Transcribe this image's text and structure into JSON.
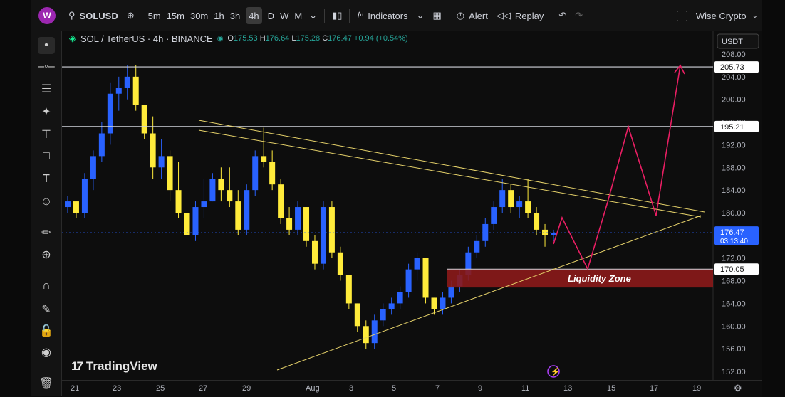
{
  "toolbar": {
    "logo": "W",
    "symbol": "SOLUSD",
    "intervals": [
      "5m",
      "15m",
      "30m",
      "1h",
      "3h",
      "4h",
      "D",
      "W",
      "M"
    ],
    "active_interval": "4h",
    "indicators_label": "Indicators",
    "alert_label": "Alert",
    "replay_label": "Replay",
    "account_label": "Wise Crypto"
  },
  "legend": {
    "title": "SOL / TetherUS · 4h · BINANCE",
    "o_label": "O",
    "o": "175.53",
    "h_label": "H",
    "h": "176.64",
    "l_label": "L",
    "l": "175.28",
    "c_label": "C",
    "c": "176.47",
    "change": "+0.94 (+0.54%)"
  },
  "currency": "USDT",
  "brand": "TradingView",
  "colors": {
    "up": "#2962ff",
    "down": "#ffeb3b",
    "trendline": "#e6d26a",
    "projection": "#e91e63",
    "zone": "#8b1a1a",
    "hline": "#d1d4dc",
    "price_tag": "#2962ff"
  },
  "chart_data": {
    "type": "candlestick",
    "ylim": [
      150,
      210
    ],
    "y_ticks": [
      "152.00",
      "156.00",
      "160.00",
      "164.00",
      "168.00",
      "172.00",
      "176.00",
      "180.00",
      "184.00",
      "188.00",
      "192.00",
      "196.00",
      "200.00",
      "204.00",
      "208.00"
    ],
    "x_ticks": [
      "21",
      "23",
      "25",
      "27",
      "29",
      "Aug",
      "3",
      "5",
      "7",
      "9",
      "11",
      "13",
      "15",
      "17",
      "19"
    ],
    "candles": [
      [
        181,
        183,
        180,
        182
      ],
      [
        182,
        182,
        179,
        180
      ],
      [
        180,
        187,
        179,
        186
      ],
      [
        186,
        191,
        184,
        190
      ],
      [
        190,
        196,
        189,
        194
      ],
      [
        194,
        203,
        192,
        201
      ],
      [
        201,
        204,
        198,
        202
      ],
      [
        202,
        206,
        200,
        204
      ],
      [
        204,
        206,
        198,
        199
      ],
      [
        199,
        199,
        193,
        194
      ],
      [
        194,
        197,
        186,
        188
      ],
      [
        188,
        193,
        186,
        190
      ],
      [
        190,
        191,
        182,
        184
      ],
      [
        184,
        189,
        179,
        180
      ],
      [
        180,
        181,
        174,
        176
      ],
      [
        176,
        182,
        175,
        181
      ],
      [
        181,
        186,
        179,
        182
      ],
      [
        182,
        187,
        182,
        186
      ],
      [
        186,
        188,
        182,
        184
      ],
      [
        184,
        188,
        181,
        182
      ],
      [
        182,
        184,
        176,
        177
      ],
      [
        177,
        185,
        176,
        184
      ],
      [
        184,
        191,
        183,
        190
      ],
      [
        190,
        195,
        188,
        189
      ],
      [
        189,
        191,
        184,
        185
      ],
      [
        185,
        186,
        178,
        179
      ],
      [
        179,
        181,
        176,
        177
      ],
      [
        177,
        182,
        176,
        181
      ],
      [
        181,
        181,
        174,
        175
      ],
      [
        175,
        176,
        170,
        171
      ],
      [
        171,
        182,
        170,
        181
      ],
      [
        181,
        182,
        172,
        173
      ],
      [
        173,
        174,
        168,
        169
      ],
      [
        169,
        169,
        163,
        164
      ],
      [
        164,
        164,
        159,
        160
      ],
      [
        160,
        161,
        156,
        157
      ],
      [
        157,
        162,
        156,
        161
      ],
      [
        161,
        164,
        160,
        163
      ],
      [
        163,
        165,
        162,
        164
      ],
      [
        164,
        167,
        163,
        166
      ],
      [
        166,
        171,
        165,
        170
      ],
      [
        170,
        173,
        168,
        172
      ],
      [
        172,
        172,
        164,
        165
      ],
      [
        165,
        165,
        162,
        163
      ],
      [
        163,
        166,
        162,
        165
      ],
      [
        165,
        168,
        164,
        167
      ],
      [
        167,
        170,
        166,
        169
      ],
      [
        169,
        174,
        168,
        173
      ],
      [
        173,
        176,
        172,
        175
      ],
      [
        175,
        179,
        174,
        178
      ],
      [
        178,
        182,
        177,
        181
      ],
      [
        181,
        186,
        180,
        184
      ],
      [
        184,
        185,
        180,
        181
      ],
      [
        181,
        183,
        179,
        182
      ],
      [
        182,
        186,
        179,
        180
      ],
      [
        180,
        181,
        176,
        177
      ],
      [
        177,
        178,
        174,
        176
      ],
      [
        176,
        177,
        175,
        176.47
      ]
    ],
    "annotations": {
      "levels": [
        205.73,
        195.21,
        170.05
      ],
      "zone": {
        "label": "Liquidity Zone",
        "from": 166.8,
        "to": 170.05
      },
      "current_price": "176.47",
      "countdown": "03:13:40",
      "level_labels": [
        "205.73",
        "195.21",
        "170.05"
      ]
    }
  }
}
